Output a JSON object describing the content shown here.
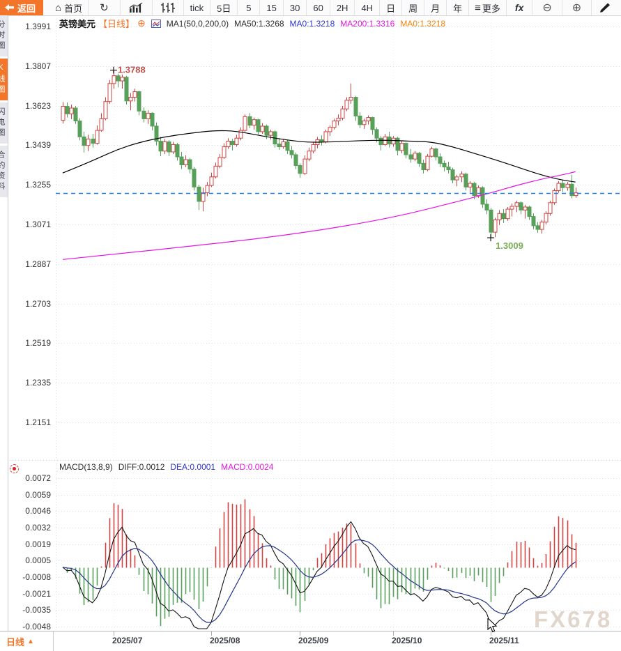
{
  "toolbar": {
    "back_label": "返回",
    "home_label": "首页",
    "tick_label": "tick",
    "periods": [
      "5日",
      "5",
      "15",
      "30",
      "60",
      "2H",
      "4H",
      "日",
      "周",
      "月",
      "年"
    ],
    "more_label": "更多",
    "fx_label": "fx"
  },
  "sidebar": {
    "tabs": [
      {
        "label": "分时图",
        "active": false
      },
      {
        "label": "K线图",
        "active": true
      },
      {
        "label": "闪电图",
        "active": false
      },
      {
        "label": "合约资料",
        "active": false
      }
    ]
  },
  "header": {
    "symbol": "英镑美元",
    "period_tag": "【日线】",
    "add_icon": "⊕",
    "ma_config": "MA1(50,0,200,0)",
    "ma50_label": "MA50:1.3268",
    "ma0_blue_label": "MA0:1.3218",
    "ma200_label": "MA200:1.3316",
    "ma0_orange_label": "MA0:1.3218"
  },
  "macd_header": {
    "config": "MACD(13,8,9)",
    "diff_label": "DIFF:0.0012",
    "dea_label": "DEA:0.0001",
    "macd_label": "MACD:0.0024"
  },
  "bottom_bar": {
    "period_label": "日线",
    "arrow": "▲"
  },
  "watermark": "FX678",
  "chart_data": {
    "type": "candlestick+macd",
    "symbol": "GBP/USD 英镑美元",
    "interval": "daily",
    "y_axis_labels_main": [
      "1.3991",
      "1.3807",
      "1.3623",
      "1.3439",
      "1.3255",
      "1.3071",
      "1.2887",
      "1.2703",
      "1.2519",
      "1.2335",
      "1.2151"
    ],
    "y_axis_labels_macd": [
      "0.0072",
      "0.0059",
      "0.0046",
      "0.0032",
      "0.0019",
      "0.0005",
      "-0.0008",
      "-0.0021",
      "-0.0035",
      "-0.0048"
    ],
    "x_axis_labels": [
      "2025/07",
      "2025/08",
      "2025/09",
      "2025/10",
      "2025/11"
    ],
    "current_price_line": {
      "value": 1.3218,
      "color": "#1e80ee"
    },
    "annotations": {
      "high": {
        "label": "1.3788",
        "color": "#c0504d"
      },
      "low": {
        "label": "1.3009",
        "color": "#7aae52"
      }
    },
    "colors": {
      "up": "#cf4341",
      "down": "#57a05a",
      "grid": "#d6dbe4",
      "vgrid": "#edeff4"
    },
    "macd": {
      "fast": 8,
      "slow": 13,
      "signal": 9,
      "colors": {
        "dif": "#111111",
        "dea": "#24358c",
        "hist_up": "#cf4341",
        "hist_down": "#57a05a"
      }
    },
    "ma_lines": [
      {
        "name": "MA50",
        "color": "#000000",
        "points": [
          [
            0,
            1.331
          ],
          [
            4,
            1.3342
          ],
          [
            8,
            1.3376
          ],
          [
            13,
            1.342
          ],
          [
            18,
            1.3452
          ],
          [
            24,
            1.3478
          ],
          [
            30,
            1.3495
          ],
          [
            36,
            1.3508
          ],
          [
            41,
            1.3505
          ],
          [
            47,
            1.3482
          ],
          [
            53,
            1.3463
          ],
          [
            58,
            1.3452
          ],
          [
            64,
            1.3455
          ],
          [
            70,
            1.346
          ],
          [
            76,
            1.3463
          ],
          [
            82,
            1.3458
          ],
          [
            87,
            1.3455
          ],
          [
            92,
            1.3432
          ],
          [
            97,
            1.3402
          ],
          [
            102,
            1.3372
          ],
          [
            107,
            1.334
          ],
          [
            112,
            1.3306
          ],
          [
            117,
            1.328
          ],
          [
            121,
            1.3268
          ]
        ]
      },
      {
        "name": "MA200",
        "color": "#e614e6",
        "points": [
          [
            0,
            1.2908
          ],
          [
            15,
            1.2938
          ],
          [
            30,
            1.297
          ],
          [
            45,
            1.3002
          ],
          [
            60,
            1.3042
          ],
          [
            72,
            1.3082
          ],
          [
            82,
            1.3122
          ],
          [
            92,
            1.3172
          ],
          [
            100,
            1.3212
          ],
          [
            107,
            1.3252
          ],
          [
            113,
            1.3282
          ],
          [
            118,
            1.3302
          ],
          [
            121,
            1.3316
          ]
        ]
      }
    ],
    "candles": [
      [
        "2025-06-13",
        1.3555,
        1.364,
        1.354,
        1.362
      ],
      [
        "2025-06-16",
        1.362,
        1.3638,
        1.3568,
        1.3585
      ],
      [
        "2025-06-17",
        1.3585,
        1.3628,
        1.356,
        1.3612
      ],
      [
        "2025-06-18",
        1.3612,
        1.3622,
        1.3538,
        1.3552
      ],
      [
        "2025-06-19",
        1.3552,
        1.3565,
        1.3462,
        1.3478
      ],
      [
        "2025-06-20",
        1.3478,
        1.3502,
        1.3405,
        1.3438
      ],
      [
        "2025-06-23",
        1.3438,
        1.3488,
        1.3412,
        1.3468
      ],
      [
        "2025-06-24",
        1.3468,
        1.3492,
        1.3428,
        1.3448
      ],
      [
        "2025-06-25",
        1.3448,
        1.3532,
        1.3442,
        1.3508
      ],
      [
        "2025-06-26",
        1.3508,
        1.3588,
        1.3502,
        1.3562
      ],
      [
        "2025-06-27",
        1.3562,
        1.3662,
        1.3555,
        1.3642
      ],
      [
        "2025-06-30",
        1.3642,
        1.3742,
        1.3632,
        1.3726
      ],
      [
        "2025-07-01",
        1.3726,
        1.3788,
        1.3702,
        1.3762
      ],
      [
        "2025-07-02",
        1.3762,
        1.3772,
        1.3708,
        1.3738
      ],
      [
        "2025-07-03",
        1.3738,
        1.3768,
        1.3702,
        1.3755
      ],
      [
        "2025-07-04",
        1.3755,
        1.3762,
        1.3628,
        1.3645
      ],
      [
        "2025-07-07",
        1.3645,
        1.3682,
        1.3602,
        1.3662
      ],
      [
        "2025-07-08",
        1.3662,
        1.3702,
        1.3642,
        1.3688
      ],
      [
        "2025-07-09",
        1.3688,
        1.3692,
        1.3578,
        1.3598
      ],
      [
        "2025-07-10",
        1.3598,
        1.3615,
        1.3545,
        1.3562
      ],
      [
        "2025-07-11",
        1.3562,
        1.3602,
        1.3538,
        1.3588
      ],
      [
        "2025-07-14",
        1.3588,
        1.3592,
        1.3508,
        1.3528
      ],
      [
        "2025-07-15",
        1.3528,
        1.3545,
        1.3438,
        1.3458
      ],
      [
        "2025-07-16",
        1.3458,
        1.3478,
        1.3388,
        1.3412
      ],
      [
        "2025-07-17",
        1.3412,
        1.3468,
        1.3398,
        1.3455
      ],
      [
        "2025-07-18",
        1.3455,
        1.3462,
        1.3388,
        1.3408
      ],
      [
        "2025-07-21",
        1.3408,
        1.3455,
        1.3398,
        1.3442
      ],
      [
        "2025-07-22",
        1.3442,
        1.345,
        1.3368,
        1.3385
      ],
      [
        "2025-07-23",
        1.3385,
        1.3408,
        1.3328,
        1.3348
      ],
      [
        "2025-07-24",
        1.3348,
        1.3392,
        1.3338,
        1.3372
      ],
      [
        "2025-07-25",
        1.3372,
        1.338,
        1.3308,
        1.3328
      ],
      [
        "2025-07-28",
        1.3328,
        1.3338,
        1.3228,
        1.3245
      ],
      [
        "2025-07-29",
        1.3245,
        1.3255,
        1.3138,
        1.3178
      ],
      [
        "2025-07-30",
        1.3178,
        1.3242,
        1.3132,
        1.3218
      ],
      [
        "2025-07-31",
        1.3218,
        1.3268,
        1.3202,
        1.3252
      ],
      [
        "2025-08-01",
        1.3252,
        1.3312,
        1.3245,
        1.3292
      ],
      [
        "2025-08-04",
        1.3292,
        1.3358,
        1.3285,
        1.3342
      ],
      [
        "2025-08-05",
        1.3342,
        1.3398,
        1.3332,
        1.3382
      ],
      [
        "2025-08-06",
        1.3382,
        1.3448,
        1.3375,
        1.3432
      ],
      [
        "2025-08-07",
        1.3432,
        1.3472,
        1.3422,
        1.3458
      ],
      [
        "2025-08-08",
        1.3458,
        1.3468,
        1.3415,
        1.3442
      ],
      [
        "2025-08-11",
        1.3442,
        1.3488,
        1.3432,
        1.3472
      ],
      [
        "2025-08-12",
        1.3472,
        1.3522,
        1.3462,
        1.3508
      ],
      [
        "2025-08-13",
        1.3508,
        1.3582,
        1.3502,
        1.3572
      ],
      [
        "2025-08-14",
        1.3572,
        1.3588,
        1.3518,
        1.3532
      ],
      [
        "2025-08-15",
        1.3532,
        1.3568,
        1.3512,
        1.3558
      ],
      [
        "2025-08-18",
        1.3558,
        1.3562,
        1.3488,
        1.3502
      ],
      [
        "2025-08-19",
        1.3502,
        1.3542,
        1.3492,
        1.3528
      ],
      [
        "2025-08-20",
        1.3528,
        1.3535,
        1.3468,
        1.3485
      ],
      [
        "2025-08-21",
        1.3485,
        1.3512,
        1.3465,
        1.3502
      ],
      [
        "2025-08-22",
        1.3502,
        1.3508,
        1.3428,
        1.3445
      ],
      [
        "2025-08-25",
        1.3445,
        1.3472,
        1.3418,
        1.3432
      ],
      [
        "2025-08-26",
        1.3432,
        1.3465,
        1.3422,
        1.3455
      ],
      [
        "2025-08-27",
        1.3455,
        1.3462,
        1.3398,
        1.3415
      ],
      [
        "2025-08-28",
        1.3415,
        1.3435,
        1.3378,
        1.3395
      ],
      [
        "2025-08-29",
        1.3395,
        1.3405,
        1.3328,
        1.3345
      ],
      [
        "2025-09-01",
        1.3345,
        1.3355,
        1.3288,
        1.3308
      ],
      [
        "2025-09-02",
        1.3308,
        1.3392,
        1.3302,
        1.3375
      ],
      [
        "2025-09-03",
        1.3375,
        1.3428,
        1.3365,
        1.3412
      ],
      [
        "2025-09-04",
        1.3412,
        1.3452,
        1.3402,
        1.3442
      ],
      [
        "2025-09-05",
        1.3442,
        1.3478,
        1.3425,
        1.3465
      ],
      [
        "2025-09-08",
        1.3465,
        1.3485,
        1.3438,
        1.3455
      ],
      [
        "2025-09-09",
        1.3455,
        1.3512,
        1.3448,
        1.3502
      ],
      [
        "2025-09-10",
        1.3502,
        1.3532,
        1.3482,
        1.3522
      ],
      [
        "2025-09-11",
        1.3522,
        1.3562,
        1.3512,
        1.3552
      ],
      [
        "2025-09-12",
        1.3552,
        1.3582,
        1.3532,
        1.3565
      ],
      [
        "2025-09-15",
        1.3565,
        1.3622,
        1.3555,
        1.3608
      ],
      [
        "2025-09-16",
        1.3608,
        1.3662,
        1.3598,
        1.3648
      ],
      [
        "2025-09-17",
        1.3648,
        1.3726,
        1.3632,
        1.3662
      ],
      [
        "2025-09-18",
        1.3662,
        1.3668,
        1.3552,
        1.3575
      ],
      [
        "2025-09-19",
        1.3575,
        1.3592,
        1.3518,
        1.3535
      ],
      [
        "2025-09-22",
        1.3535,
        1.3562,
        1.3515,
        1.3552
      ],
      [
        "2025-09-23",
        1.3552,
        1.3578,
        1.3535,
        1.3568
      ],
      [
        "2025-09-24",
        1.3568,
        1.3572,
        1.3488,
        1.3512
      ],
      [
        "2025-09-25",
        1.3512,
        1.3522,
        1.3452,
        1.3472
      ],
      [
        "2025-09-26",
        1.3472,
        1.3482,
        1.3415,
        1.3442
      ],
      [
        "2025-09-29",
        1.3442,
        1.3492,
        1.3435,
        1.3478
      ],
      [
        "2025-09-30",
        1.3478,
        1.3502,
        1.3428,
        1.3445
      ],
      [
        "2025-10-01",
        1.3445,
        1.3482,
        1.3432,
        1.3472
      ],
      [
        "2025-10-02",
        1.3472,
        1.3478,
        1.3392,
        1.3415
      ],
      [
        "2025-10-03",
        1.3415,
        1.3458,
        1.3402,
        1.3448
      ],
      [
        "2025-10-06",
        1.3448,
        1.3452,
        1.3378,
        1.3395
      ],
      [
        "2025-10-07",
        1.3395,
        1.3422,
        1.3358,
        1.3375
      ],
      [
        "2025-10-08",
        1.3375,
        1.3412,
        1.3365,
        1.3402
      ],
      [
        "2025-10-09",
        1.3402,
        1.3408,
        1.3338,
        1.3355
      ],
      [
        "2025-10-10",
        1.3355,
        1.3372,
        1.3308,
        1.3325
      ],
      [
        "2025-10-13",
        1.3325,
        1.3398,
        1.3318,
        1.3388
      ],
      [
        "2025-10-14",
        1.3388,
        1.3432,
        1.3382,
        1.3422
      ],
      [
        "2025-10-15",
        1.3422,
        1.3428,
        1.3368,
        1.3385
      ],
      [
        "2025-10-16",
        1.3385,
        1.3402,
        1.3338,
        1.3355
      ],
      [
        "2025-10-17",
        1.3355,
        1.3368,
        1.3318,
        1.3338
      ],
      [
        "2025-10-20",
        1.3338,
        1.3362,
        1.3308,
        1.3325
      ],
      [
        "2025-10-21",
        1.3325,
        1.3335,
        1.3262,
        1.3278
      ],
      [
        "2025-10-22",
        1.3278,
        1.3302,
        1.3248,
        1.3292
      ],
      [
        "2025-10-23",
        1.3292,
        1.3318,
        1.3268,
        1.3305
      ],
      [
        "2025-10-24",
        1.3305,
        1.3312,
        1.3228,
        1.3245
      ],
      [
        "2025-10-27",
        1.3245,
        1.3272,
        1.3218,
        1.3262
      ],
      [
        "2025-10-28",
        1.3262,
        1.3268,
        1.3188,
        1.3205
      ],
      [
        "2025-10-29",
        1.3205,
        1.3252,
        1.3195,
        1.3242
      ],
      [
        "2025-10-30",
        1.3242,
        1.3248,
        1.3148,
        1.3165
      ],
      [
        "2025-10-31",
        1.3165,
        1.3188,
        1.3118,
        1.3138
      ],
      [
        "2025-11-03",
        1.3138,
        1.3148,
        1.3009,
        1.3035
      ],
      [
        "2025-11-04",
        1.3035,
        1.3102,
        1.3012,
        1.3092
      ],
      [
        "2025-11-05",
        1.3092,
        1.3138,
        1.3068,
        1.3122
      ],
      [
        "2025-11-06",
        1.3122,
        1.3142,
        1.3078,
        1.3098
      ],
      [
        "2025-11-07",
        1.3098,
        1.3152,
        1.3088,
        1.3142
      ],
      [
        "2025-11-10",
        1.3142,
        1.3168,
        1.3108,
        1.3155
      ],
      [
        "2025-11-11",
        1.3155,
        1.3182,
        1.3128,
        1.3172
      ],
      [
        "2025-11-12",
        1.3172,
        1.3178,
        1.3118,
        1.3138
      ],
      [
        "2025-11-13",
        1.3138,
        1.3162,
        1.3098,
        1.3152
      ],
      [
        "2025-11-14",
        1.3152,
        1.3158,
        1.3092,
        1.3108
      ],
      [
        "2025-11-17",
        1.3108,
        1.3122,
        1.3048,
        1.3065
      ],
      [
        "2025-11-18",
        1.3065,
        1.3082,
        1.3032,
        1.3048
      ],
      [
        "2025-11-19",
        1.3048,
        1.3092,
        1.3028,
        1.3082
      ],
      [
        "2025-11-20",
        1.3082,
        1.3132,
        1.3072,
        1.3122
      ],
      [
        "2025-11-21",
        1.3122,
        1.3182,
        1.3112,
        1.3172
      ],
      [
        "2025-11-24",
        1.3172,
        1.3238,
        1.3162,
        1.3228
      ],
      [
        "2025-11-25",
        1.3228,
        1.3272,
        1.3218,
        1.3262
      ],
      [
        "2025-11-26",
        1.3262,
        1.3278,
        1.3222,
        1.3242
      ],
      [
        "2025-11-27",
        1.3242,
        1.3268,
        1.3228,
        1.3258
      ],
      [
        "2025-11-28",
        1.3258,
        1.3302,
        1.3192,
        1.3205
      ],
      [
        "2025-12-01",
        1.3205,
        1.3242,
        1.3195,
        1.3218
      ]
    ]
  }
}
